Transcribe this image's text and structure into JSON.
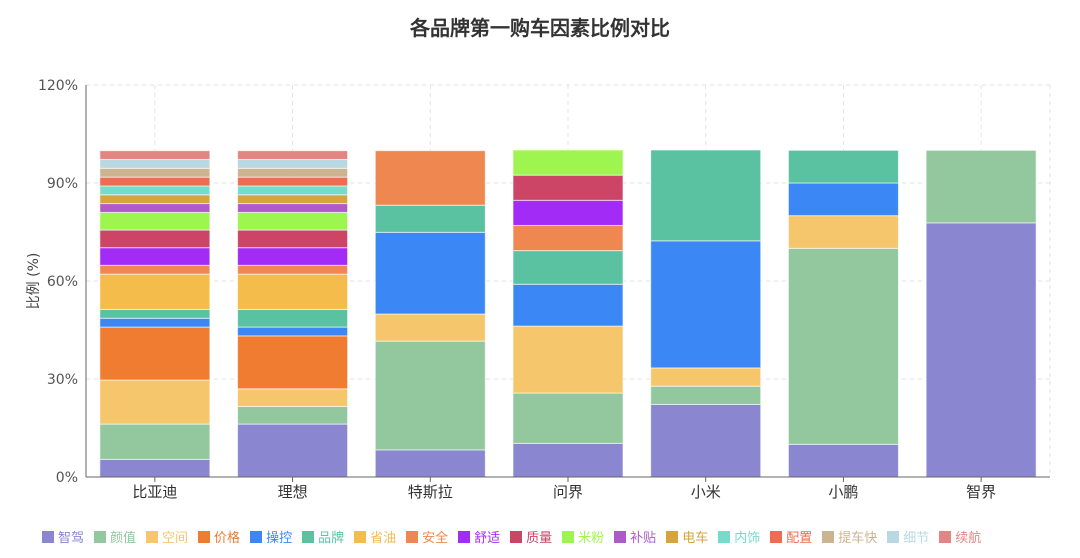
{
  "chart_data": {
    "type": "bar",
    "stacked": true,
    "title": "各品牌第一购车因素比例对比",
    "xlabel": "",
    "ylabel": "比例 (%)",
    "ylim": [
      0,
      120
    ],
    "yticks": [
      "0%",
      "30%",
      "60%",
      "90%",
      "120%"
    ],
    "grid": true,
    "legend_position": "bottom",
    "categories": [
      "比亚迪",
      "理想",
      "特斯拉",
      "问界",
      "小米",
      "小鹏",
      "智界"
    ],
    "series": [
      {
        "name": "智驾",
        "color": "#8a86d0",
        "values": [
          5.4,
          16.2,
          8.3,
          10.3,
          22.2,
          10,
          77.8
        ]
      },
      {
        "name": "颜值",
        "color": "#93c89e",
        "values": [
          10.8,
          5.4,
          33.3,
          15.4,
          5.6,
          60,
          22.2
        ]
      },
      {
        "name": "空间",
        "color": "#f6c66c",
        "values": [
          13.5,
          5.4,
          8.3,
          20.5,
          5.6,
          10,
          0
        ]
      },
      {
        "name": "价格",
        "color": "#ef7c30",
        "values": [
          16.2,
          16.2,
          0,
          0,
          0,
          0,
          0
        ]
      },
      {
        "name": "操控",
        "color": "#3a87f5",
        "values": [
          2.7,
          2.7,
          25,
          12.8,
          38.9,
          10,
          0
        ]
      },
      {
        "name": "品牌",
        "color": "#5ac1a1",
        "values": [
          2.7,
          5.4,
          8.3,
          10.3,
          27.8,
          10,
          0
        ]
      },
      {
        "name": "省油",
        "color": "#f4bc4b",
        "values": [
          10.8,
          10.8,
          0,
          0,
          0,
          0,
          0
        ]
      },
      {
        "name": "安全",
        "color": "#ef8850",
        "values": [
          2.7,
          2.7,
          16.7,
          7.7,
          0,
          0,
          0
        ]
      },
      {
        "name": "舒适",
        "color": "#a22cf5",
        "values": [
          5.4,
          5.4,
          0,
          7.7,
          0,
          0,
          0
        ]
      },
      {
        "name": "质量",
        "color": "#cc4566",
        "values": [
          5.4,
          5.4,
          0,
          7.7,
          0,
          0,
          0
        ]
      },
      {
        "name": "米粉",
        "color": "#9ff54f",
        "values": [
          5.4,
          5.4,
          0,
          7.7,
          0,
          0,
          0
        ]
      },
      {
        "name": "补贴",
        "color": "#ad5bcc",
        "values": [
          2.7,
          2.7,
          0,
          0,
          0,
          0,
          0
        ]
      },
      {
        "name": "电车",
        "color": "#d4a53e",
        "values": [
          2.7,
          2.7,
          0,
          0,
          0,
          0,
          0
        ]
      },
      {
        "name": "内饰",
        "color": "#74dccb",
        "values": [
          2.7,
          2.7,
          0,
          0,
          0,
          0,
          0
        ]
      },
      {
        "name": "配置",
        "color": "#ef6b51",
        "values": [
          2.7,
          2.7,
          0,
          0,
          0,
          0,
          0
        ]
      },
      {
        "name": "提车快",
        "color": "#ccb491",
        "values": [
          2.7,
          2.7,
          0,
          0,
          0,
          0,
          0
        ]
      },
      {
        "name": "细节",
        "color": "#b8d8e2",
        "values": [
          2.7,
          2.7,
          0,
          0,
          0,
          0,
          0
        ]
      },
      {
        "name": "续航",
        "color": "#e38683",
        "values": [
          2.7,
          2.7,
          0,
          0,
          0,
          0,
          0
        ]
      }
    ]
  }
}
